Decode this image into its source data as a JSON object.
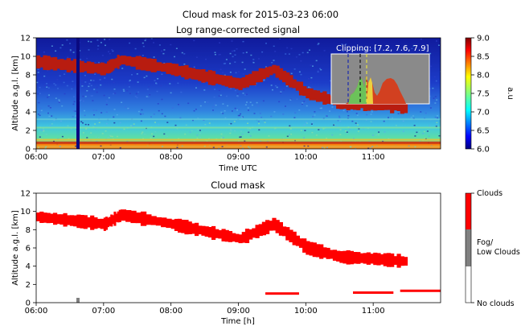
{
  "figure": {
    "suptitle": "Cloud mask for 2015-03-23 06:00"
  },
  "chart_data": [
    {
      "type": "heatmap",
      "title": "Log range-corrected signal",
      "xlabel": "Time UTC",
      "ylabel": "Altitude a.g.l. [km]",
      "xticks": [
        "06:00",
        "07:00",
        "08:00",
        "09:00",
        "10:00",
        "11:00"
      ],
      "xlim_hours": [
        6.0,
        12.0
      ],
      "yticks": [
        0,
        2,
        4,
        6,
        8,
        10,
        12
      ],
      "ylim": [
        0,
        12
      ],
      "colorbar": {
        "label": "a.u",
        "ticks": [
          6.0,
          6.5,
          7.0,
          7.5,
          8.0,
          8.5,
          9.0
        ],
        "range": [
          6.0,
          9.0
        ],
        "colormap": "jet"
      },
      "inset": {
        "label": "Clipping: [7.2, 7.6, 7.9]",
        "markers": [
          7.2,
          7.6,
          7.9
        ]
      },
      "cloud_layer_altitude_km": [
        {
          "time": "06:00",
          "alt": 9.4
        },
        {
          "time": "06:30",
          "alt": 9.0
        },
        {
          "time": "07:00",
          "alt": 8.6
        },
        {
          "time": "07:15",
          "alt": 9.6
        },
        {
          "time": "08:00",
          "alt": 8.6
        },
        {
          "time": "08:30",
          "alt": 7.8
        },
        {
          "time": "09:00",
          "alt": 7.0
        },
        {
          "time": "09:30",
          "alt": 8.6
        },
        {
          "time": "10:00",
          "alt": 6.0
        },
        {
          "time": "10:30",
          "alt": 5.0
        },
        {
          "time": "11:00",
          "alt": 4.8
        },
        {
          "time": "11:30",
          "alt": 4.5
        }
      ]
    },
    {
      "type": "heatmap",
      "title": "Cloud mask",
      "xlabel": "Time [h]",
      "ylabel": "Altitude a.g.l. [km]",
      "xticks": [
        "06:00",
        "07:00",
        "08:00",
        "09:00",
        "10:00",
        "11:00"
      ],
      "xlim_hours": [
        6.0,
        12.0
      ],
      "yticks": [
        0,
        2,
        4,
        6,
        8,
        10,
        12
      ],
      "ylim": [
        0,
        12
      ],
      "colorbar": {
        "categories": [
          "Clouds",
          "Fog/\nLow Clouds",
          "No clouds"
        ],
        "labels": [
          "Clouds",
          "Fog/",
          "Low Clouds",
          "No clouds"
        ],
        "colors": [
          "#ff0000",
          "#808080",
          "#ffffff"
        ]
      }
    }
  ]
}
